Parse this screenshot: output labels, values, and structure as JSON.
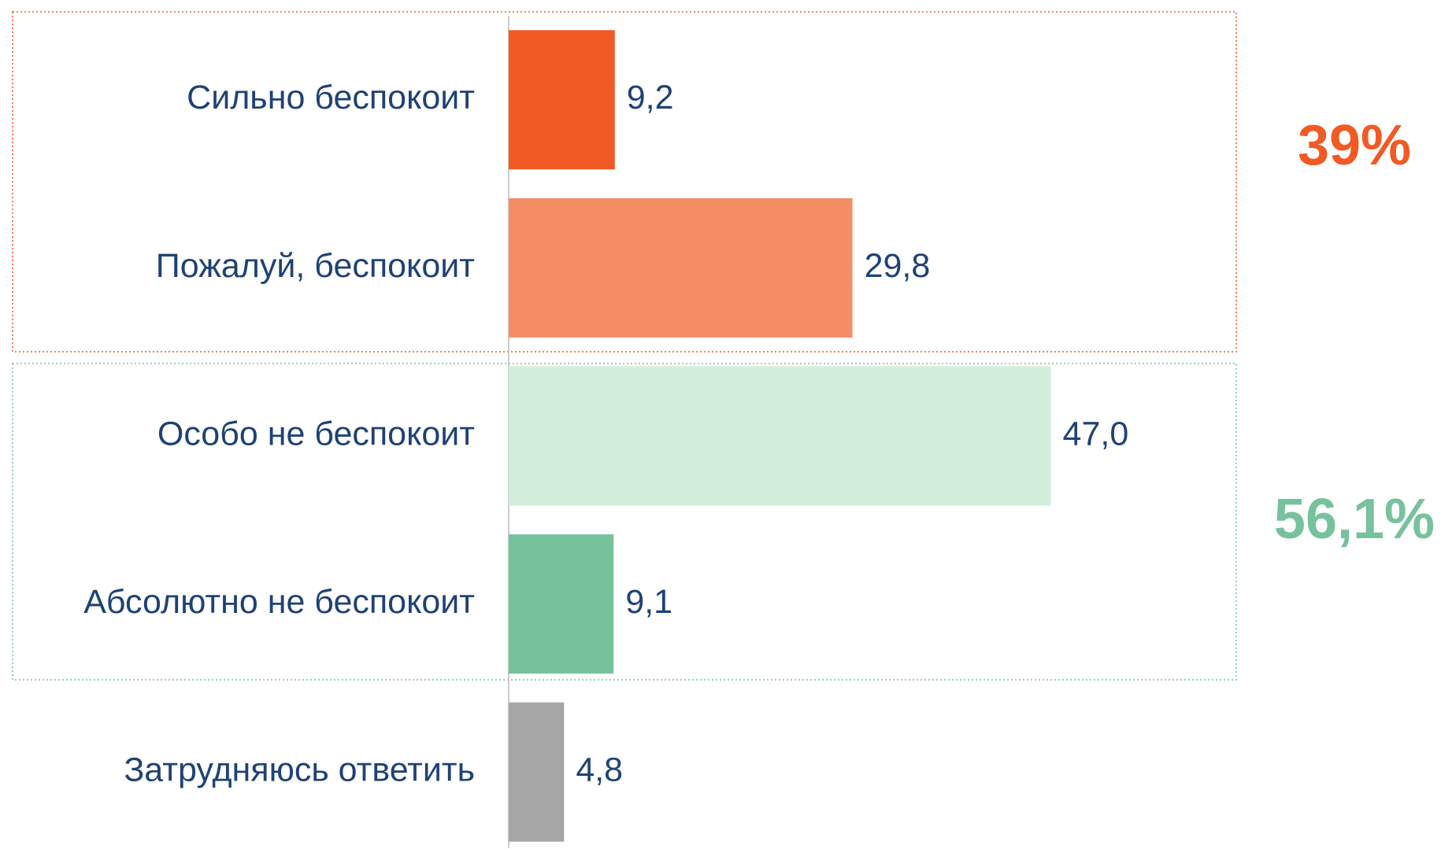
{
  "chart_data": {
    "type": "bar",
    "orientation": "horizontal",
    "categories": [
      "Сильно беспокоит",
      "Пожалуй, беспокоит",
      "Особо не беспокоит",
      "Абсолютно не беспокоит",
      "Затрудняюсь ответить"
    ],
    "values": [
      9.2,
      29.8,
      47.0,
      9.1,
      4.8
    ],
    "value_labels": [
      "9,2",
      "29,8",
      "47,0",
      "9,1",
      "4,8"
    ],
    "colors": [
      "#f15a24",
      "#f48c65",
      "#d2eddb",
      "#76c29d",
      "#a6a6a6"
    ],
    "xlim": [
      0,
      60
    ],
    "annotations": [
      {
        "text": "39%",
        "color": "#f15a24"
      },
      {
        "text": "56,1%",
        "color": "#76c29d"
      }
    ]
  }
}
